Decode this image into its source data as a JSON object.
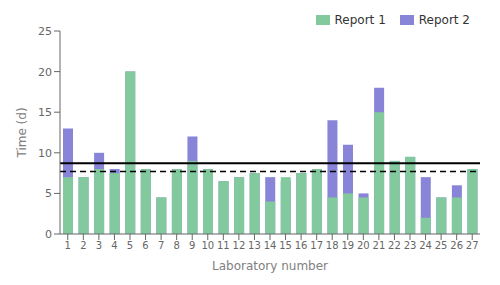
{
  "chart_data": {
    "type": "bar",
    "xlabel": "Laboratory number",
    "ylabel": "Time (d)",
    "categories": [
      "1",
      "2",
      "3",
      "4",
      "5",
      "6",
      "7",
      "8",
      "9",
      "10",
      "11",
      "12",
      "13",
      "14",
      "15",
      "16",
      "17",
      "18",
      "19",
      "20",
      "21",
      "22",
      "23",
      "24",
      "25",
      "26",
      "27"
    ],
    "series": [
      {
        "name": "Report 1",
        "color": "#82ca9d",
        "values": [
          7,
          7,
          8,
          7.5,
          20,
          8,
          4.5,
          8,
          9,
          8,
          6.5,
          7,
          7.5,
          4,
          7,
          7.5,
          8,
          4.5,
          5,
          4.5,
          15,
          9,
          9.5,
          2,
          4.5,
          4.5,
          8
        ]
      },
      {
        "name": "Report 2",
        "color": "#8884d8",
        "values": [
          13,
          7,
          10,
          8,
          20,
          8,
          4.5,
          8,
          12,
          8,
          6.5,
          7,
          7.5,
          7,
          6.5,
          7.5,
          8,
          14,
          11,
          5,
          18,
          9,
          9.5,
          7,
          4.5,
          6,
          8
        ]
      }
    ],
    "reference_lines": [
      {
        "value": 7.7,
        "line_style": "dashed",
        "color": "black"
      },
      {
        "value": 8.7,
        "line_style": "solid",
        "color": "black"
      }
    ],
    "ylim": [
      0,
      25
    ],
    "yticks": [
      0,
      5,
      10,
      15,
      20,
      25
    ],
    "grid": false,
    "legend": "upper right"
  }
}
